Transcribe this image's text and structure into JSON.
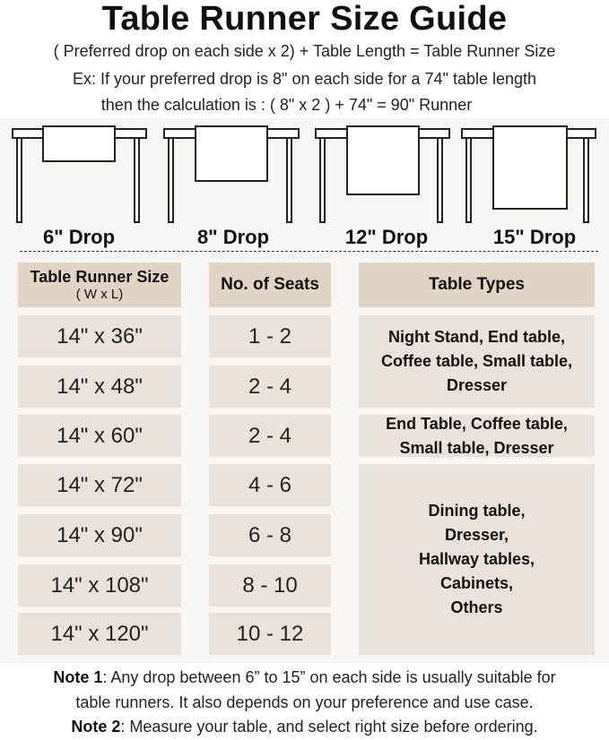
{
  "title": "Table Runner Size Guide",
  "formula": "( Preferred drop on each side x 2) + Table Length = Table Runner Size",
  "example_line1": "Ex: If your preferred drop is 8\" on each side for a 74\" table length",
  "example_line2": "then the calculation is : ( 8\" x 2 ) + 74\" = 90\" Runner",
  "drops": [
    "6\" Drop",
    "8\" Drop",
    "12\" Drop",
    "15\" Drop"
  ],
  "table": {
    "headers": {
      "size": "Table Runner Size",
      "size_sub": "( W x L)",
      "seats": "No. of Seats",
      "types": "Table Types"
    },
    "rows": [
      {
        "size": "14\" x 36\"",
        "seats": "1 - 2"
      },
      {
        "size": "14\" x 48\"",
        "seats": "2 - 4"
      },
      {
        "size": "14\" x 60\"",
        "seats": "2 - 4"
      },
      {
        "size": "14\" x 72\"",
        "seats": "4 - 6"
      },
      {
        "size": "14\" x 90\"",
        "seats": "6 - 8"
      },
      {
        "size": "14\" x 108\"",
        "seats": "8 - 10"
      },
      {
        "size": "14\" x 120\"",
        "seats": "10 - 12"
      }
    ],
    "types": [
      "Night Stand, End table, Coffee table, Small table, Dresser",
      "End Table, Coffee table, Small table, Dresser",
      "Dining table, Dresser, Hallway tables, Cabinets, Others"
    ]
  },
  "notes": {
    "note1_label": "Note 1",
    "note1_text": ": Any drop between 6” to 15” on each side is usually suitable for",
    "note1_text2": "table runners. It also depends on your preference and use case.",
    "note2_label": "Note 2",
    "note2_text": ": Measure your table, and select right size before ordering."
  },
  "colors": {
    "header": "#e1d4c4",
    "cell": "#e9e1dc",
    "background": "#f8f5f2"
  }
}
